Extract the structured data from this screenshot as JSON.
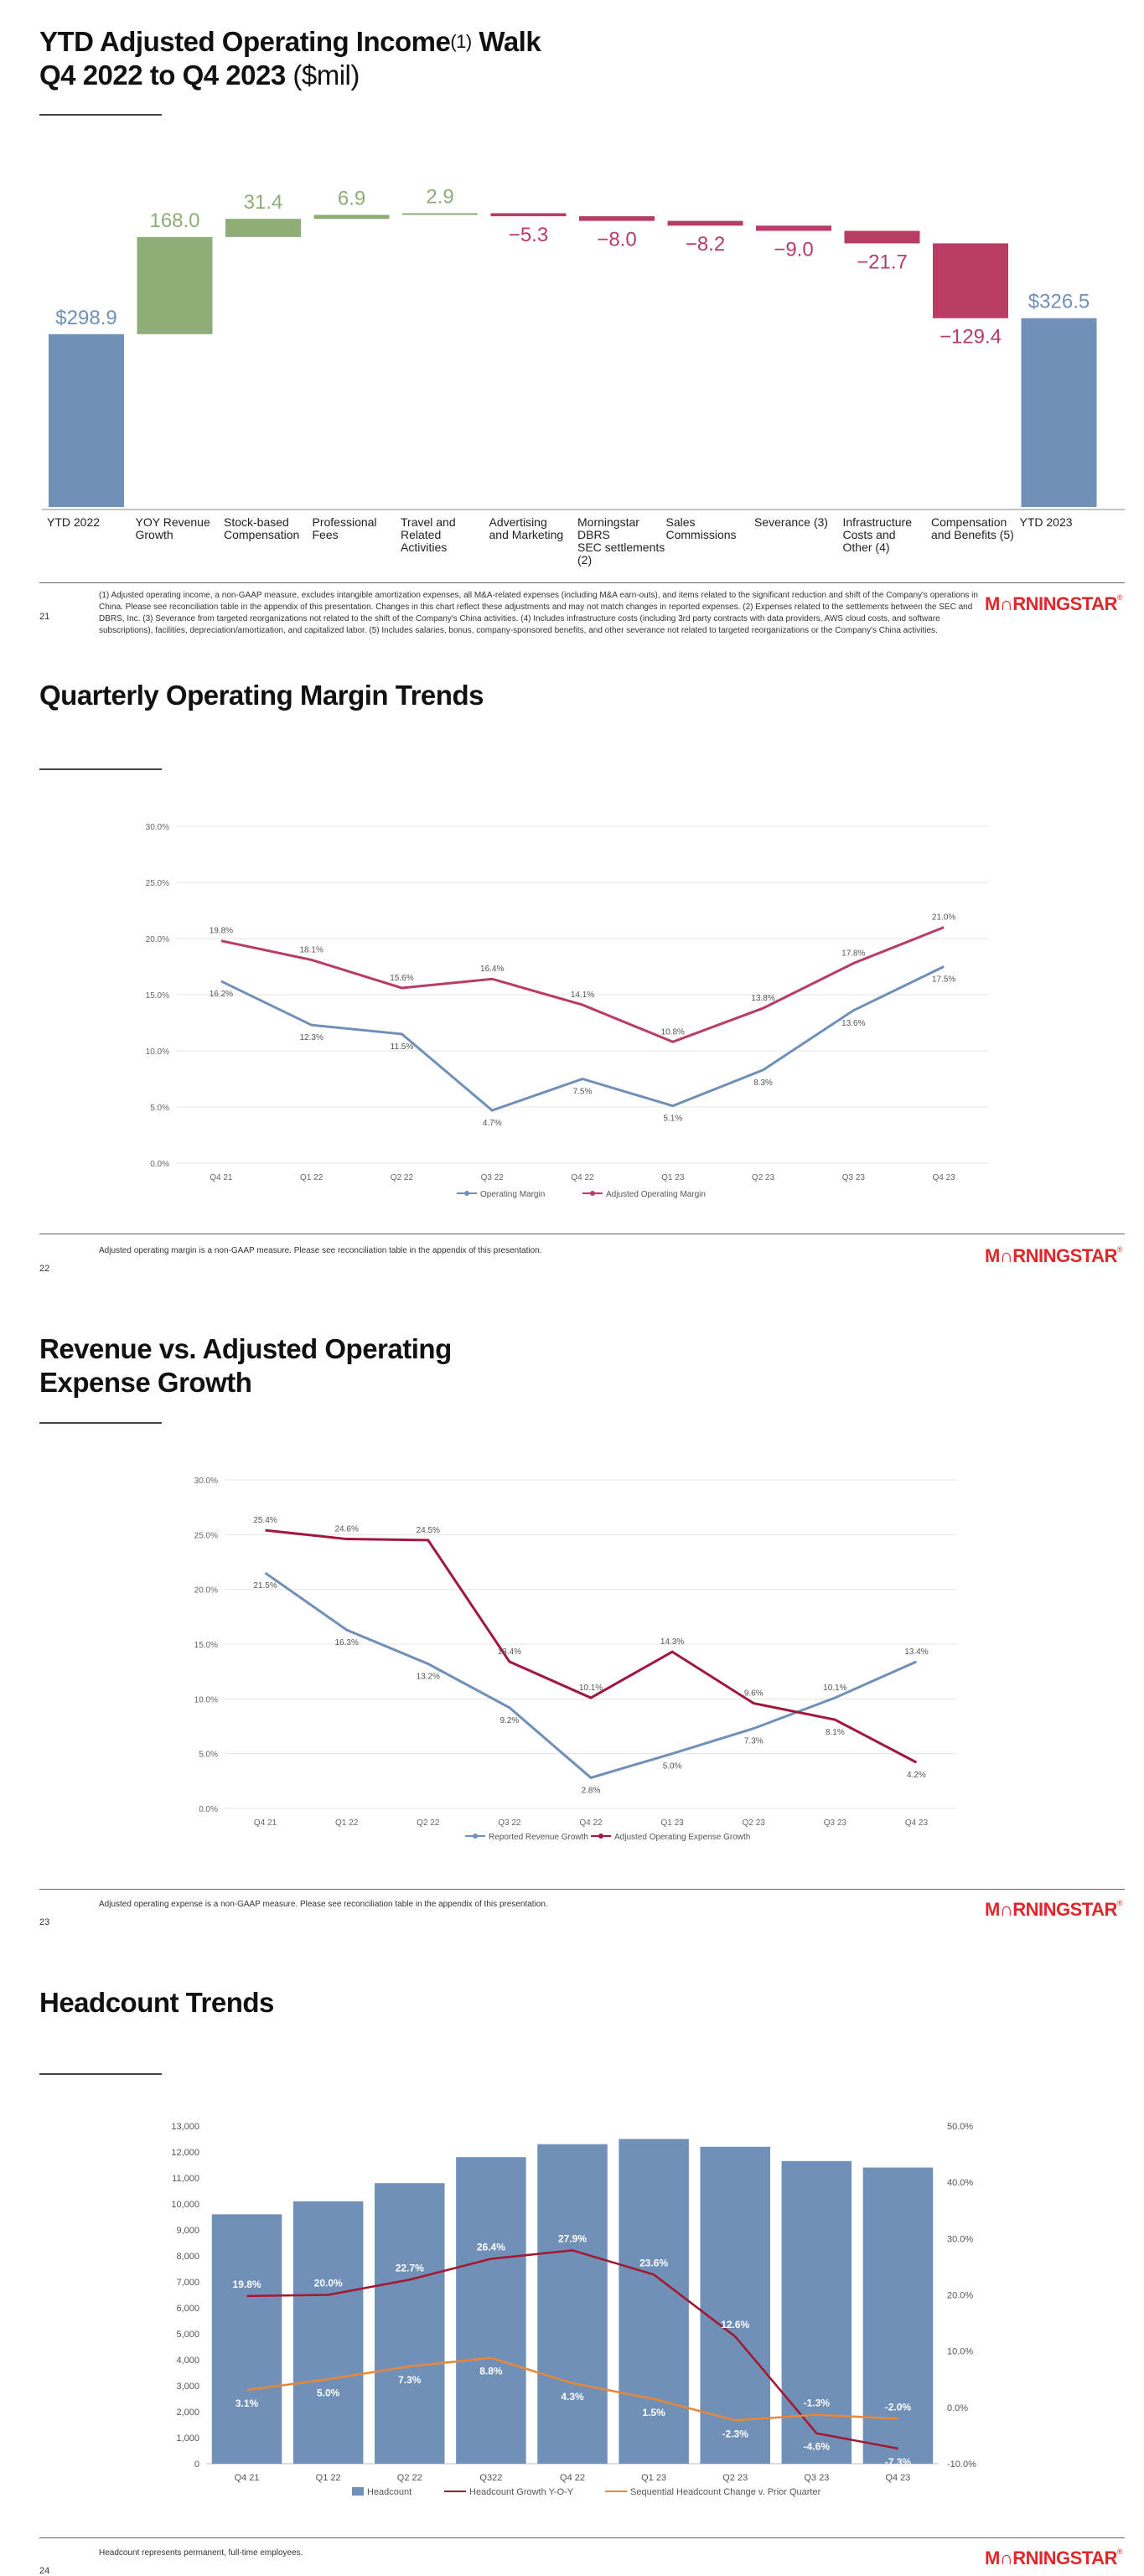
{
  "slides": [
    {
      "page_number": "21",
      "title_line1": "YTD Adjusted Operating Income",
      "title_sup": "(1)",
      "title_line1_end": " Walk",
      "title_line2_bold": "Q4 2022 to Q4 2023",
      "title_line2_light": " ($mil)",
      "footnote": "(1) Adjusted operating income, a non-GAAP measure, excludes intangible amortization expenses, all M&A-related expenses (including M&A earn-outs), and items related to the significant reduction and shift of the Company's operations in China. Please see reconciliation table in the appendix of this presentation. Changes in this chart reflect these adjustments and may not match changes in reported expenses. (2) Expenses related to the settlements between the SEC and DBRS, Inc. (3) Severance from targeted reorganizations not related to the shift of the Company's China activities. (4) Includes infrastructure costs (including 3rd party contracts with data providers, AWS cloud costs, and software subscriptions), facilities, depreciation/amortization, and capitalized labor. (5) Includes salaries, bonus, company-sponsored benefits, and other severance not related to targeted reorganizations or the Company's China activities."
    },
    {
      "page_number": "22",
      "title": "Quarterly Operating Margin Trends",
      "footnote": "Adjusted operating margin is a non-GAAP measure. Please see reconciliation table in the appendix of this presentation."
    },
    {
      "page_number": "23",
      "title_line1": "Revenue vs. Adjusted Operating",
      "title_line2": "Expense Growth",
      "footnote": "Adjusted operating expense is a non-GAAP measure. Please see reconciliation table in the appendix of this presentation."
    },
    {
      "page_number": "24",
      "title": "Headcount Trends",
      "footnote": "Headcount represents permanent, full-time employees."
    }
  ],
  "logo": {
    "text": "M∩RNINGSTAR",
    "reg": "®"
  },
  "colors": {
    "blue": "#7090b8",
    "green": "#8fad77",
    "maroon": "#b83c63",
    "darkred": "#a1173f",
    "orange": "#e6883a",
    "grid": "#e4e4e4"
  },
  "chart_data": [
    {
      "type": "waterfall",
      "title": "YTD Adjusted Operating Income Walk Q4 2022 to Q4 2023 ($mil)",
      "categories": [
        "YTD 2022",
        "YOY Revenue Growth",
        "Stock-based Compensation",
        "Professional Fees",
        "Travel and Related Activities",
        "Advertising and Marketing",
        "Morningstar DBRS SEC settlements (2)",
        "Sales Commissions",
        "Severance (3)",
        "Infrastructure Costs and Other (4)",
        "Compensation and Benefits (5)",
        "YTD 2023"
      ],
      "category_lines": [
        [
          "YTD 2022"
        ],
        [
          "YOY Revenue",
          "Growth"
        ],
        [
          "Stock-based",
          "Compensation"
        ],
        [
          "Professional",
          "Fees"
        ],
        [
          "Travel and",
          "Related",
          "Activities"
        ],
        [
          "Advertising",
          "and Marketing"
        ],
        [
          "Morningstar",
          "DBRS",
          "SEC settlements",
          "(2)"
        ],
        [
          "Sales",
          "Commissions"
        ],
        [
          "Severance (3)"
        ],
        [
          "Infrastructure",
          "Costs and",
          "Other (4)"
        ],
        [
          "Compensation",
          "and Benefits (5)"
        ],
        [
          "YTD 2023"
        ]
      ],
      "values": [
        298.9,
        168.0,
        31.4,
        6.9,
        2.9,
        -5.3,
        -8.0,
        -8.2,
        -9.0,
        -21.7,
        -129.4,
        326.5
      ],
      "labels": [
        "$298.9",
        "168.0",
        "31.4",
        "6.9",
        "2.9",
        "−5.3",
        "−8.0",
        "−8.2",
        "−9.0",
        "−21.7",
        "−129.4",
        "$326.5"
      ],
      "kinds": [
        "total",
        "up",
        "up",
        "up",
        "up",
        "down",
        "down",
        "down",
        "down",
        "down",
        "down",
        "total"
      ]
    },
    {
      "type": "line",
      "title": "Quarterly Operating Margin Trends",
      "categories": [
        "Q4 21",
        "Q1 22",
        "Q2 22",
        "Q3 22",
        "Q4 22",
        "Q1 23",
        "Q2 23",
        "Q3 23",
        "Q4 23"
      ],
      "ylim": [
        0,
        30
      ],
      "yticks": [
        "0.0%",
        "5.0%",
        "10.0%",
        "15.0%",
        "20.0%",
        "25.0%",
        "30.0%"
      ],
      "series": [
        {
          "name": "Operating Margin",
          "values": [
            16.2,
            12.3,
            11.5,
            4.7,
            7.5,
            5.1,
            8.3,
            13.6,
            17.5
          ],
          "labels": [
            "16.2%",
            "12.3%",
            "11.5%",
            "4.7%",
            "7.5%",
            "5.1%",
            "8.3%",
            "13.6%",
            "17.5%"
          ]
        },
        {
          "name": "Adjusted Operating Margin",
          "values": [
            19.8,
            18.1,
            15.6,
            16.4,
            14.1,
            10.8,
            13.8,
            17.8,
            21.0
          ],
          "labels": [
            "19.8%",
            "18.1%",
            "15.6%",
            "16.4%",
            "14.1%",
            "10.8%",
            "13.8%",
            "17.8%",
            "21.0%"
          ]
        }
      ]
    },
    {
      "type": "line",
      "title": "Revenue vs. Adjusted Operating Expense Growth",
      "categories": [
        "Q4 21",
        "Q1 22",
        "Q2 22",
        "Q3 22",
        "Q4 22",
        "Q1 23",
        "Q2 23",
        "Q3 23",
        "Q4 23"
      ],
      "ylim": [
        0,
        30
      ],
      "yticks": [
        "0.0%",
        "5.0%",
        "10.0%",
        "15.0%",
        "20.0%",
        "25.0%",
        "30.0%"
      ],
      "series": [
        {
          "name": "Reported Revenue Growth",
          "values": [
            21.5,
            16.3,
            13.2,
            9.2,
            2.8,
            5.0,
            7.3,
            10.1,
            13.4
          ],
          "labels": [
            "21.5%",
            "16.3%",
            "13.2%",
            "9.2%",
            "2.8%",
            "5.0%",
            "7.3%",
            "10.1%",
            "13.4%"
          ]
        },
        {
          "name": "Adjusted Operating Expense Growth",
          "values": [
            25.4,
            24.6,
            24.5,
            13.4,
            10.1,
            14.3,
            9.6,
            8.1,
            4.2
          ],
          "labels": [
            "25.4%",
            "24.6%",
            "24.5%",
            "13.4%",
            "10.1%",
            "14.3%",
            "9.6%",
            "8.1%",
            "4.2%"
          ]
        }
      ]
    },
    {
      "type": "bar+line",
      "title": "Headcount Trends",
      "categories": [
        "Q4 21",
        "Q1 22",
        "Q2 22",
        "Q322",
        "Q4 22",
        "Q1 23",
        "Q2 23",
        "Q3 23",
        "Q4 23"
      ],
      "left_axis": {
        "ylim": [
          0,
          13000
        ],
        "ticks": [
          "0",
          "1,000",
          "2,000",
          "3,000",
          "4,000",
          "5,000",
          "6,000",
          "7,000",
          "8,000",
          "9,000",
          "10,000",
          "11,000",
          "12,000",
          "13,000"
        ]
      },
      "right_axis": {
        "ylim": [
          -10,
          50
        ],
        "ticks": [
          "-10.0%",
          "0.0%",
          "10.0%",
          "20.0%",
          "30.0%",
          "40.0%",
          "50.0%"
        ]
      },
      "bars": {
        "name": "Headcount",
        "values": [
          9600,
          10100,
          10800,
          11800,
          12300,
          12500,
          12200,
          11650,
          11400
        ]
      },
      "series": [
        {
          "name": "Headcount Growth Y-O-Y",
          "values": [
            19.8,
            20.0,
            22.7,
            26.4,
            27.9,
            23.6,
            12.6,
            -4.6,
            -7.3
          ],
          "labels": [
            "19.8%",
            "20.0%",
            "22.7%",
            "26.4%",
            "27.9%",
            "23.6%",
            "12.6%",
            "-4.6%",
            "-7.3%"
          ]
        },
        {
          "name": "Sequential Headcount Change v. Prior Quarter",
          "values": [
            3.1,
            5.0,
            7.3,
            8.8,
            4.3,
            1.5,
            -2.3,
            -1.3,
            -2.0
          ],
          "labels": [
            "3.1%",
            "5.0%",
            "7.3%",
            "8.8%",
            "4.3%",
            "1.5%",
            "-2.3%",
            "-1.3%",
            "-2.0%"
          ]
        }
      ]
    }
  ]
}
